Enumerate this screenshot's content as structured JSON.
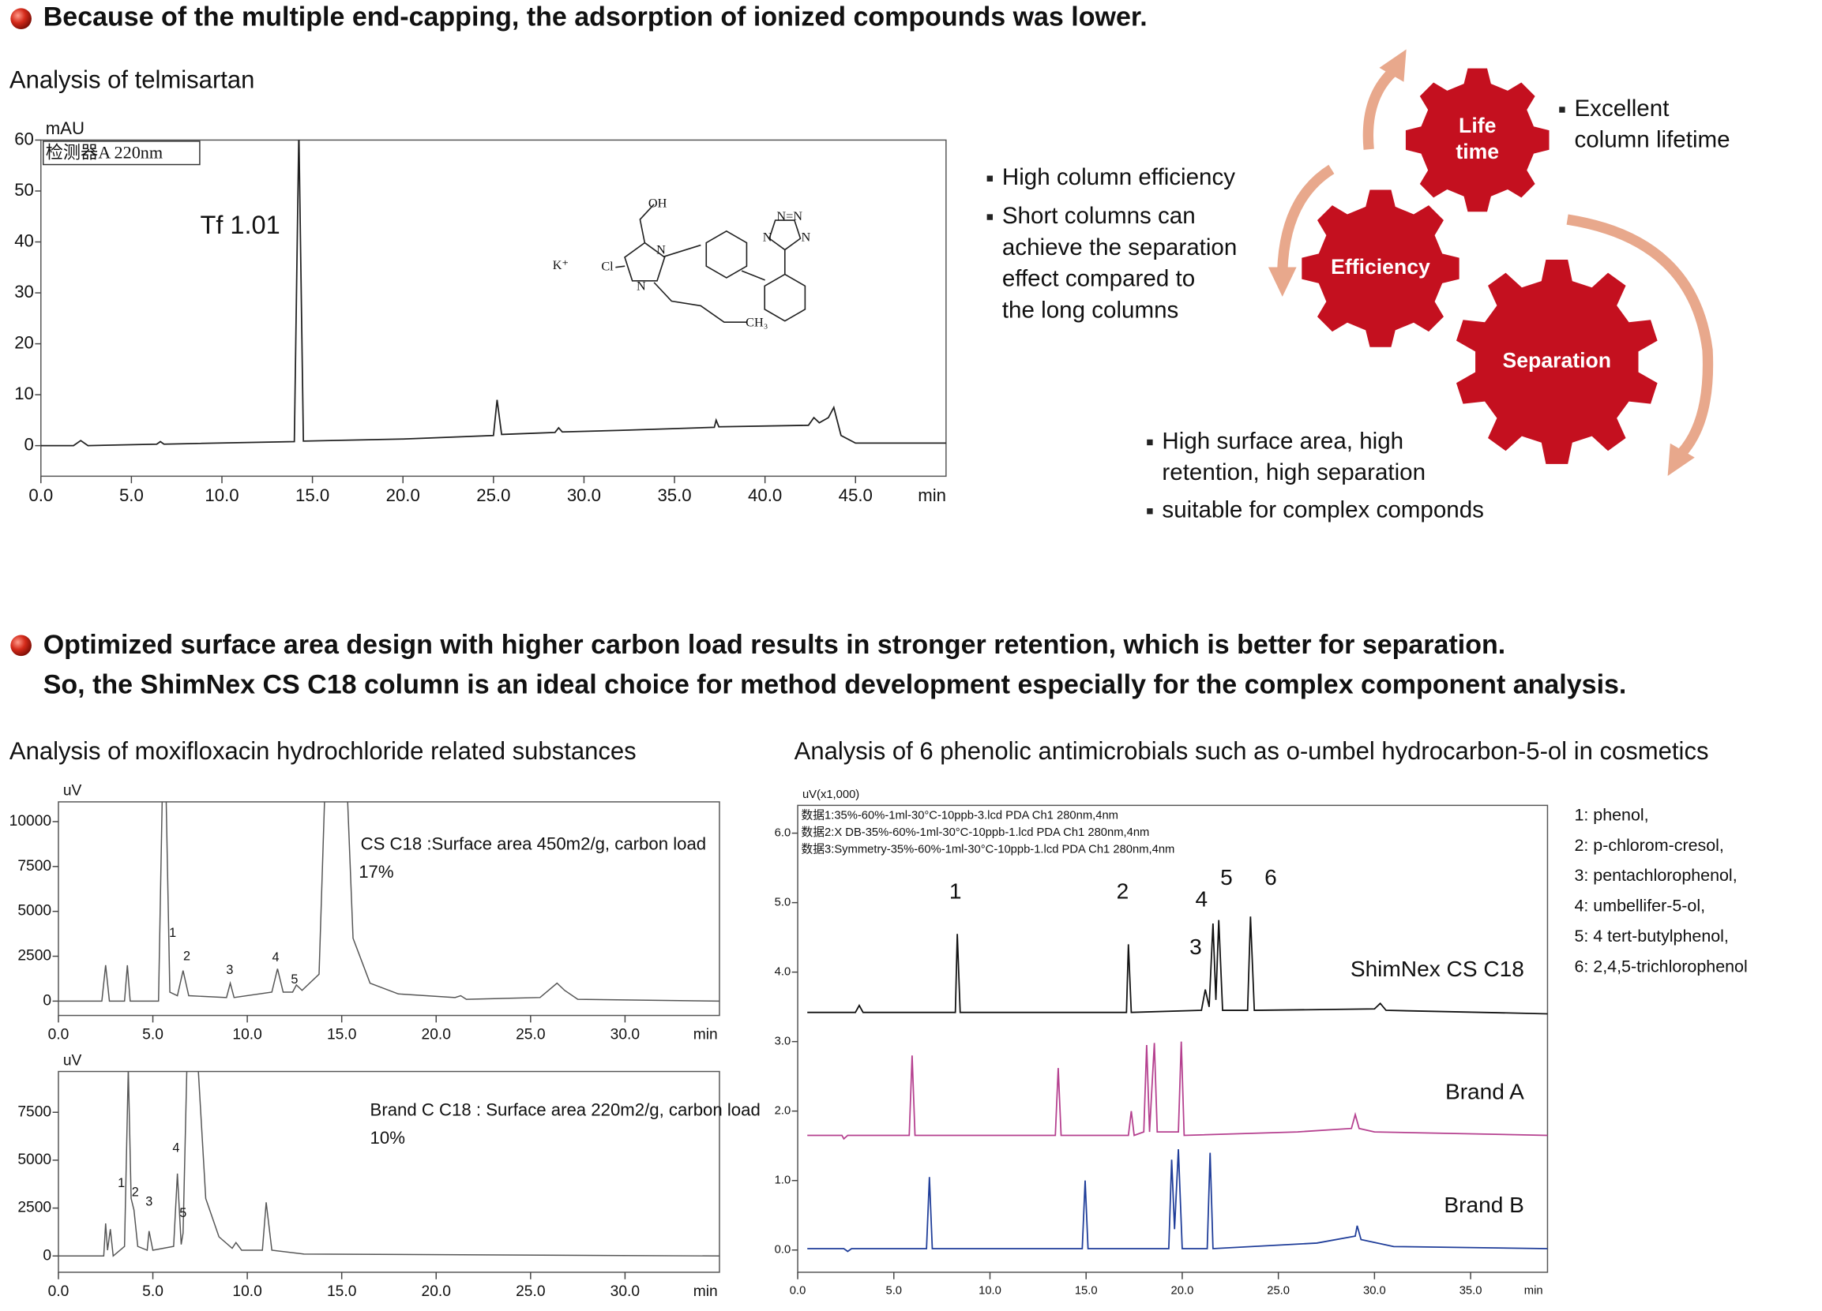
{
  "heading1": "Because of the multiple end-capping, the adsorption of ionized compounds was  lower.",
  "heading2_lines": [
    "Optimized surface area design with higher carbon load results in stronger retention, which is  better for separation.",
    "So, the ShimNex CS C18 column is an ideal choice for method development especially for the complex component analysis."
  ],
  "telmisartan_title": "Analysis of telmisartan",
  "moxifloxacin_title": "Analysis of moxifloxacin hydrochloride related substances",
  "phenolic_title": "Analysis of 6 phenolic antimicrobials such as o-umbel hydrocarbon-5-ol in cosmetics",
  "structure_labels": [
    "OH",
    "K⁺",
    "Cl",
    "N",
    "N",
    "CH₃",
    "N=N",
    "N",
    "N"
  ],
  "diagram": {
    "gears": [
      {
        "lines": [
          "Life",
          "time"
        ]
      },
      {
        "lines": [
          "Efficiency"
        ]
      },
      {
        "lines": [
          "Separation"
        ]
      }
    ],
    "bullets": [
      {
        "lines": [
          "Excellent",
          "column lifetime"
        ]
      },
      {
        "lines": [
          "High column efficiency"
        ]
      },
      {
        "lines": [
          "Short columns can",
          "achieve the separation",
          "effect compared to",
          "the long columns"
        ]
      },
      {
        "lines": [
          "High surface area, high",
          "retention, high separation"
        ]
      },
      {
        "lines": [
          "suitable for complex componds"
        ]
      }
    ]
  },
  "compounds": [
    "1: phenol,",
    "2: p-chlorom-cresol,",
    "3: pentachlorophenol,",
    "4: umbellifer-5-ol,",
    "5: 4 tert-butylphenol,",
    "6: 2,4,5-trichlorophenol"
  ],
  "chart_data": [
    {
      "type": "line",
      "y_label": "mAU",
      "x_label": "min",
      "detector_label": "检测器A 220nm",
      "xlim": [
        0,
        50
      ],
      "ylim": [
        -6,
        60
      ],
      "xticks": [
        {
          "value": 0,
          "label": "0.0"
        },
        {
          "value": 5,
          "label": "5.0"
        },
        {
          "value": 10,
          "label": "10.0"
        },
        {
          "value": 15,
          "label": "15.0"
        },
        {
          "value": 20,
          "label": "20.0"
        },
        {
          "value": 25,
          "label": "25.0"
        },
        {
          "value": 30,
          "label": "30.0"
        },
        {
          "value": 35,
          "label": "35.0"
        },
        {
          "value": 40,
          "label": "40.0"
        },
        {
          "value": 45,
          "label": "45.0"
        }
      ],
      "yticks": [
        0,
        10,
        20,
        30,
        40,
        50,
        60
      ],
      "annotations": [
        {
          "text": "Tf 1.01",
          "x": 8.8,
          "y": 43
        }
      ],
      "series": [
        {
          "color": "#222222",
          "x": [
            0,
            1.8,
            2.2,
            2.6,
            6.4,
            6.6,
            6.8,
            14.0,
            14.25,
            14.5,
            20,
            25,
            25.2,
            25.45,
            28.4,
            28.6,
            28.8,
            32,
            37.2,
            37.3,
            37.45,
            42.4,
            42.7,
            43.0,
            43.5,
            43.8,
            44.2,
            45,
            50
          ],
          "values": [
            0,
            0,
            1,
            0,
            0.3,
            0.8,
            0.3,
            0.8,
            62,
            0.9,
            1.3,
            2.0,
            9,
            2.2,
            2.6,
            3.5,
            2.7,
            3,
            3.6,
            5,
            3.7,
            4,
            5.5,
            4.5,
            5.5,
            7.5,
            2,
            0.5,
            0.5
          ]
        }
      ]
    },
    {
      "type": "line",
      "y_label": "uV",
      "x_label": "min",
      "xlim": [
        0,
        35
      ],
      "ylim": [
        -800,
        11100
      ],
      "xticks": [
        {
          "value": 0,
          "label": "0.0"
        },
        {
          "value": 5,
          "label": "5.0"
        },
        {
          "value": 10,
          "label": "10.0"
        },
        {
          "value": 15,
          "label": "15.0"
        },
        {
          "value": 20,
          "label": "20.0"
        },
        {
          "value": 25,
          "label": "25.0"
        },
        {
          "value": 30,
          "label": "30.0"
        }
      ],
      "yticks": [
        0,
        2500,
        5000,
        7500,
        10000
      ],
      "annotations": [
        {
          "text": "CS C18 :Surface area 450m2/g, carbon load",
          "x": 16.0,
          "y": 8700
        },
        {
          "text": "17%",
          "x": 15.9,
          "y": 7140
        },
        {
          "text": "1",
          "x": 6.05,
          "y": 3770
        },
        {
          "text": "2",
          "x": 6.8,
          "y": 2470
        },
        {
          "text": "3",
          "x": 9.07,
          "y": 1690
        },
        {
          "text": "4",
          "x": 11.5,
          "y": 2400
        },
        {
          "text": "5",
          "x": 12.5,
          "y": 1170
        }
      ],
      "series": [
        {
          "color": "#555555",
          "x": [
            0,
            2.3,
            2.5,
            2.7,
            3.5,
            3.65,
            3.8,
            5.3,
            5.5,
            5.7,
            5.9,
            6.3,
            6.6,
            6.9,
            8.9,
            9.1,
            9.3,
            11.3,
            11.6,
            11.9,
            12.4,
            12.6,
            12.9,
            13.8,
            14.1,
            15.3,
            15.6,
            16.5,
            18,
            21,
            21.3,
            21.6,
            25.5,
            26.4,
            26.8,
            27.5,
            35
          ],
          "values": [
            0,
            0,
            2000,
            0,
            0,
            2000,
            0,
            0,
            11500,
            11500,
            500,
            300,
            1700,
            300,
            200,
            1000,
            200,
            500,
            1800,
            500,
            500,
            900,
            600,
            1500,
            11500,
            11500,
            3500,
            1000,
            400,
            200,
            300,
            100,
            200,
            1000,
            600,
            100,
            0
          ]
        }
      ]
    },
    {
      "type": "line",
      "y_label": "uV",
      "x_label": "min",
      "xlim": [
        0,
        35
      ],
      "ylim": [
        -850,
        9630
      ],
      "xticks": [
        {
          "value": 0,
          "label": "0.0"
        },
        {
          "value": 5,
          "label": "5.0"
        },
        {
          "value": 10,
          "label": "10.0"
        },
        {
          "value": 15,
          "label": "15.0"
        },
        {
          "value": 20,
          "label": "20.0"
        },
        {
          "value": 25,
          "label": "25.0"
        },
        {
          "value": 30,
          "label": "30.0"
        }
      ],
      "yticks": [
        0,
        2500,
        5000,
        7500
      ],
      "annotations": [
        {
          "text": "Brand C C18 : Surface area 220m2/g, carbon load",
          "x": 16.5,
          "y": 7560
        },
        {
          "text": "10%",
          "x": 16.5,
          "y": 6100
        },
        {
          "text": "1",
          "x": 3.33,
          "y": 3780
        },
        {
          "text": "2",
          "x": 4.07,
          "y": 3290
        },
        {
          "text": "3",
          "x": 4.8,
          "y": 2800
        },
        {
          "text": "4",
          "x": 6.23,
          "y": 5610
        },
        {
          "text": "5",
          "x": 6.6,
          "y": 2200
        }
      ],
      "series": [
        {
          "color": "#555555",
          "x": [
            0,
            2.4,
            2.5,
            2.6,
            2.75,
            2.9,
            3.5,
            3.7,
            3.85,
            4.0,
            4.2,
            4.7,
            4.8,
            5.0,
            6.1,
            6.3,
            6.5,
            6.6,
            6.8,
            7.4,
            7.8,
            8.5,
            9.2,
            9.4,
            9.7,
            10.8,
            11,
            11.3,
            13,
            35
          ],
          "values": [
            0,
            0,
            1700,
            300,
            1400,
            0,
            500,
            9800,
            3000,
            2400,
            500,
            300,
            1300,
            300,
            500,
            4300,
            600,
            1200,
            9800,
            9800,
            3000,
            1000,
            400,
            700,
            300,
            300,
            2800,
            300,
            100,
            0
          ]
        }
      ]
    },
    {
      "type": "line",
      "y_label": "uV(x1,000)",
      "x_label": "min",
      "xlim": [
        0,
        39
      ],
      "ylim": [
        -0.32,
        6.4
      ],
      "xticks": [
        {
          "value": 0,
          "label": "0.0"
        },
        {
          "value": 5,
          "label": "5.0"
        },
        {
          "value": 10,
          "label": "10.0"
        },
        {
          "value": 15,
          "label": "15.0"
        },
        {
          "value": 20,
          "label": "20.0"
        },
        {
          "value": 25,
          "label": "25.0"
        },
        {
          "value": 30,
          "label": "30.0"
        },
        {
          "value": 35,
          "label": "35.0"
        }
      ],
      "yticks": [
        {
          "value": 0,
          "label": "0.0"
        },
        {
          "value": 1,
          "label": "1.0"
        },
        {
          "value": 2,
          "label": "2.0"
        },
        {
          "value": 3,
          "label": "3.0"
        },
        {
          "value": 4,
          "label": "4.0"
        },
        {
          "value": 5,
          "label": "5.0"
        },
        {
          "value": 6,
          "label": "6.0"
        }
      ],
      "legend_lines": [
        "数据1:35%-60%-1ml-30°C-10ppb-3.lcd PDA Ch1 280nm,4nm",
        "数据2:X DB-35%-60%-1ml-30°C-10ppb-1.lcd PDA Ch1 280nm,4nm",
        "数据3:Symmetry-35%-60%-1ml-30°C-10ppb-1.lcd PDA Ch1 280nm,4nm"
      ],
      "annotations": [
        {
          "text": "1",
          "x": 8.2,
          "y": 5.14
        },
        {
          "text": "2",
          "x": 16.9,
          "y": 5.14
        },
        {
          "text": "3",
          "x": 20.7,
          "y": 4.34
        },
        {
          "text": "4",
          "x": 21.0,
          "y": 5.03
        },
        {
          "text": "5",
          "x": 22.3,
          "y": 5.34
        },
        {
          "text": "6",
          "x": 24.6,
          "y": 5.34
        }
      ],
      "series": [
        {
          "name": "ShimNex CS C18",
          "color": "#111111",
          "x": [
            0.5,
            3,
            3.2,
            3.4,
            8.2,
            8.3,
            8.45,
            17.1,
            17.2,
            17.35,
            21,
            21.2,
            21.4,
            21.6,
            21.75,
            21.9,
            22.1,
            23.4,
            23.55,
            23.75,
            30,
            30.3,
            30.6,
            39
          ],
          "values": [
            3.42,
            3.42,
            3.52,
            3.42,
            3.42,
            4.55,
            3.42,
            3.42,
            4.4,
            3.42,
            3.45,
            3.75,
            3.5,
            4.7,
            3.6,
            4.75,
            3.45,
            3.45,
            4.8,
            3.45,
            3.47,
            3.55,
            3.45,
            3.4
          ]
        },
        {
          "name": "Brand A",
          "color": "#b5408f",
          "x": [
            0.5,
            2.3,
            2.4,
            2.6,
            5.8,
            5.95,
            6.1,
            13.4,
            13.55,
            13.7,
            17.2,
            17.35,
            17.5,
            18,
            18.15,
            18.3,
            18.55,
            18.7,
            19.8,
            19.95,
            20.1,
            26,
            28.8,
            29,
            29.2,
            30,
            39
          ],
          "values": [
            1.65,
            1.65,
            1.6,
            1.65,
            1.65,
            2.8,
            1.65,
            1.65,
            2.62,
            1.65,
            1.65,
            2.0,
            1.65,
            1.7,
            2.95,
            1.7,
            2.98,
            1.7,
            1.7,
            3.0,
            1.65,
            1.7,
            1.75,
            1.95,
            1.75,
            1.7,
            1.65
          ]
        },
        {
          "name": "Brand B",
          "color": "#1f3d99",
          "x": [
            0.5,
            2.4,
            2.6,
            2.8,
            6.7,
            6.85,
            7.0,
            14.8,
            14.95,
            15.1,
            19.3,
            19.45,
            19.6,
            19.8,
            20,
            21.3,
            21.45,
            21.6,
            27,
            29,
            29.1,
            29.3,
            31,
            39
          ],
          "values": [
            0.02,
            0.02,
            -0.02,
            0.02,
            0.02,
            1.05,
            0.02,
            0.02,
            1.0,
            0.02,
            0.02,
            1.3,
            0.3,
            1.45,
            0.02,
            0.02,
            1.4,
            0.02,
            0.1,
            0.2,
            0.35,
            0.15,
            0.05,
            0.02
          ]
        }
      ]
    }
  ]
}
